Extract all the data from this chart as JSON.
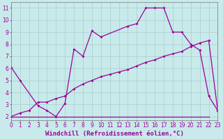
{
  "line1_x": [
    0,
    1,
    3,
    4,
    5,
    6,
    7,
    8,
    9,
    10,
    13,
    14,
    15,
    16,
    17,
    18,
    19,
    20,
    21,
    22,
    23
  ],
  "line1_y": [
    6.1,
    5.0,
    2.9,
    2.5,
    2.0,
    3.1,
    7.6,
    7.0,
    9.1,
    8.6,
    9.5,
    9.7,
    11.0,
    11.0,
    11.0,
    9.0,
    9.0,
    8.0,
    7.5,
    3.7,
    2.5
  ],
  "line2_x": [
    0,
    1,
    2,
    3,
    4,
    5,
    6,
    7,
    8,
    9,
    10,
    11,
    12,
    13,
    14,
    15,
    16,
    17,
    18,
    19,
    20,
    21,
    22,
    23
  ],
  "line2_y": [
    2.0,
    2.3,
    2.5,
    3.2,
    3.2,
    3.5,
    3.7,
    4.3,
    4.7,
    5.0,
    5.3,
    5.5,
    5.7,
    5.9,
    6.2,
    6.5,
    6.7,
    7.0,
    7.2,
    7.4,
    7.8,
    8.1,
    8.3,
    2.5
  ],
  "line3_x": [
    0,
    6,
    13,
    14,
    22
  ],
  "line3_y": [
    2.0,
    2.0,
    2.0,
    2.0,
    2.0
  ],
  "line_color": "#9b009b",
  "marker": "D",
  "markersize": 2.0,
  "linewidth": 0.9,
  "bg_color": "#c8eaea",
  "grid_color": "#a8cccc",
  "xlabel": "Windchill (Refroidissement éolien,°C)",
  "xlabel_fontsize": 6.5,
  "ylabel_ticks": [
    2,
    3,
    4,
    5,
    6,
    7,
    8,
    9,
    10,
    11
  ],
  "xtick_labels": [
    "0",
    "1",
    "2",
    "3",
    "4",
    "5",
    "6",
    "7",
    "8",
    "9",
    "10",
    "11",
    "12",
    "13",
    "14",
    "15",
    "16",
    "17",
    "18",
    "19",
    "20",
    "21",
    "22",
    "23"
  ],
  "xlim": [
    0,
    23
  ],
  "ylim": [
    1.7,
    11.5
  ],
  "tick_fontsize": 5.5
}
